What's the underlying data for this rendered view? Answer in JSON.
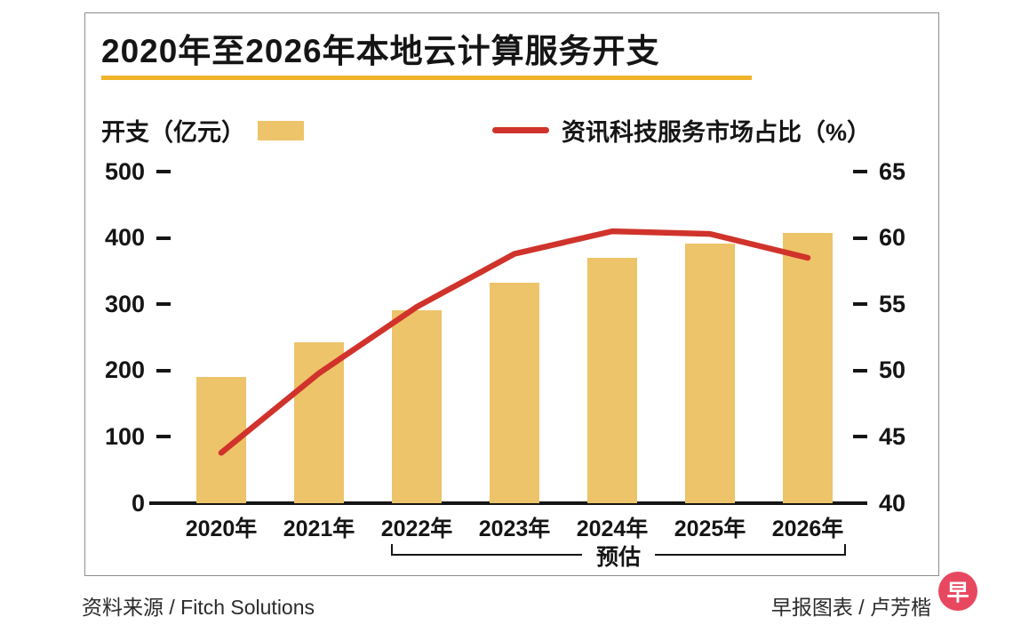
{
  "chart": {
    "title": "2020年至2026年本地云计算服务开支",
    "legend": {
      "bars": "开支（亿元）",
      "line": "资讯科技服务市场占比（%）"
    },
    "estimate_label": "预估",
    "footer": {
      "source": "资料来源 / Fitch Solutions",
      "credit": "早报图表 / 卢芳楷",
      "logo_glyph": "早",
      "logo_color": "#e8485f"
    }
  },
  "chart_data": {
    "type": "bar+line",
    "title": "2020年至2026年本地云计算服务开支",
    "categories": [
      "2020年",
      "2021年",
      "2022年",
      "2023年",
      "2024年",
      "2025年",
      "2026年"
    ],
    "series": [
      {
        "name": "开支（亿元）",
        "type": "bar",
        "axis": "left",
        "values": [
          190,
          242,
          291,
          333,
          370,
          392,
          408
        ]
      },
      {
        "name": "资讯科技服务市场占比（%）",
        "type": "line",
        "axis": "right",
        "values": [
          43.8,
          49.8,
          54.8,
          58.8,
          60.5,
          60.3,
          58.5
        ]
      }
    ],
    "left_axis": {
      "label": "开支（亿元）",
      "ticks": [
        0,
        100,
        200,
        300,
        400,
        500
      ],
      "range": [
        0,
        500
      ]
    },
    "right_axis": {
      "label": "资讯科技服务市场占比（%）",
      "ticks": [
        40,
        45,
        50,
        55,
        60,
        65
      ],
      "range": [
        40,
        65
      ]
    },
    "estimate_span": [
      "2022年",
      "2026年"
    ],
    "legend_position": "top",
    "grid": false,
    "colors": {
      "bar": "#edc469",
      "line": "#d0332b",
      "gold_accent": "#f0b32a",
      "axis": "#151515"
    }
  }
}
